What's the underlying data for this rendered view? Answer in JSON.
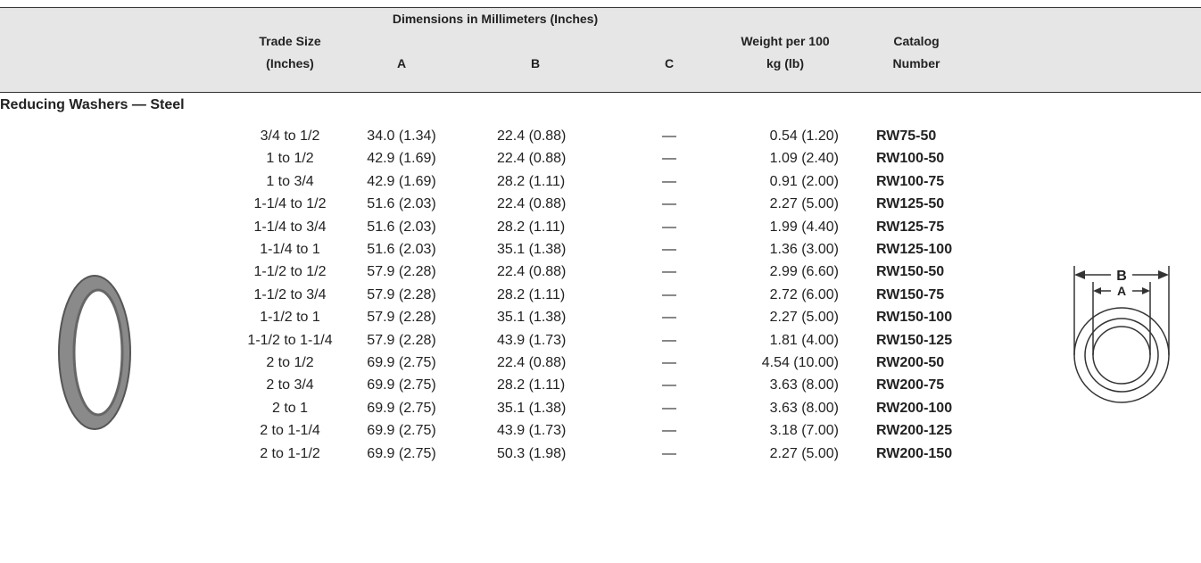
{
  "header": {
    "trade_size": [
      "Trade Size",
      "(Inches)"
    ],
    "dimensions": "Dimensions in Millimeters (Inches)",
    "a": "A",
    "b": "B",
    "c": "C",
    "weight": [
      "Weight per 100",
      "kg (lb)"
    ],
    "catalog": [
      "Catalog",
      "Number"
    ]
  },
  "section": "Reducing Washers — Steel",
  "table": {
    "rows": [
      [
        "3/4 to 1/2",
        "34.0 (1.34)",
        "22.4 (0.88)",
        "—",
        "0.54 (1.20)",
        "RW75-50"
      ],
      [
        "1 to 1/2",
        "42.9 (1.69)",
        "22.4 (0.88)",
        "—",
        "1.09 (2.40)",
        "RW100-50"
      ],
      [
        "1 to 3/4",
        "42.9 (1.69)",
        "28.2 (1.11)",
        "—",
        "0.91 (2.00)",
        "RW100-75"
      ],
      [
        "1-1/4 to 1/2",
        "51.6 (2.03)",
        "22.4 (0.88)",
        "—",
        "2.27 (5.00)",
        "RW125-50"
      ],
      [
        "1-1/4 to 3/4",
        "51.6 (2.03)",
        "28.2 (1.11)",
        "—",
        "1.99 (4.40)",
        "RW125-75"
      ],
      [
        "1-1/4 to 1",
        "51.6 (2.03)",
        "35.1 (1.38)",
        "—",
        "1.36 (3.00)",
        "RW125-100"
      ],
      [
        "1-1/2 to 1/2",
        "57.9 (2.28)",
        "22.4 (0.88)",
        "—",
        "2.99 (6.60)",
        "RW150-50"
      ],
      [
        "1-1/2 to 3/4",
        "57.9 (2.28)",
        "28.2 (1.11)",
        "—",
        "2.72 (6.00)",
        "RW150-75"
      ],
      [
        "1-1/2 to 1",
        "57.9 (2.28)",
        "35.1 (1.38)",
        "—",
        "2.27 (5.00)",
        "RW150-100"
      ],
      [
        "1-1/2 to 1-1/4",
        "57.9 (2.28)",
        "43.9 (1.73)",
        "—",
        "1.81 (4.00)",
        "RW150-125"
      ],
      [
        "2 to 1/2",
        "69.9 (2.75)",
        "22.4 (0.88)",
        "—",
        "4.54 (10.00)",
        "RW200-50"
      ],
      [
        "2 to 3/4",
        "69.9 (2.75)",
        "28.2 (1.11)",
        "—",
        "3.63 (8.00)",
        "RW200-75"
      ],
      [
        "2 to 1",
        "69.9 (2.75)",
        "35.1 (1.38)",
        "—",
        "3.63 (8.00)",
        "RW200-100"
      ],
      [
        "2 to 1-1/4",
        "69.9 (2.75)",
        "43.9 (1.73)",
        "—",
        "3.18 (7.00)",
        "RW200-125"
      ],
      [
        "2 to 1-1/2",
        "69.9 (2.75)",
        "50.3 (1.98)",
        "—",
        "2.27 (5.00)",
        "RW200-150"
      ]
    ]
  },
  "diagram": {
    "outer_label": "B",
    "inner_label": "A"
  }
}
